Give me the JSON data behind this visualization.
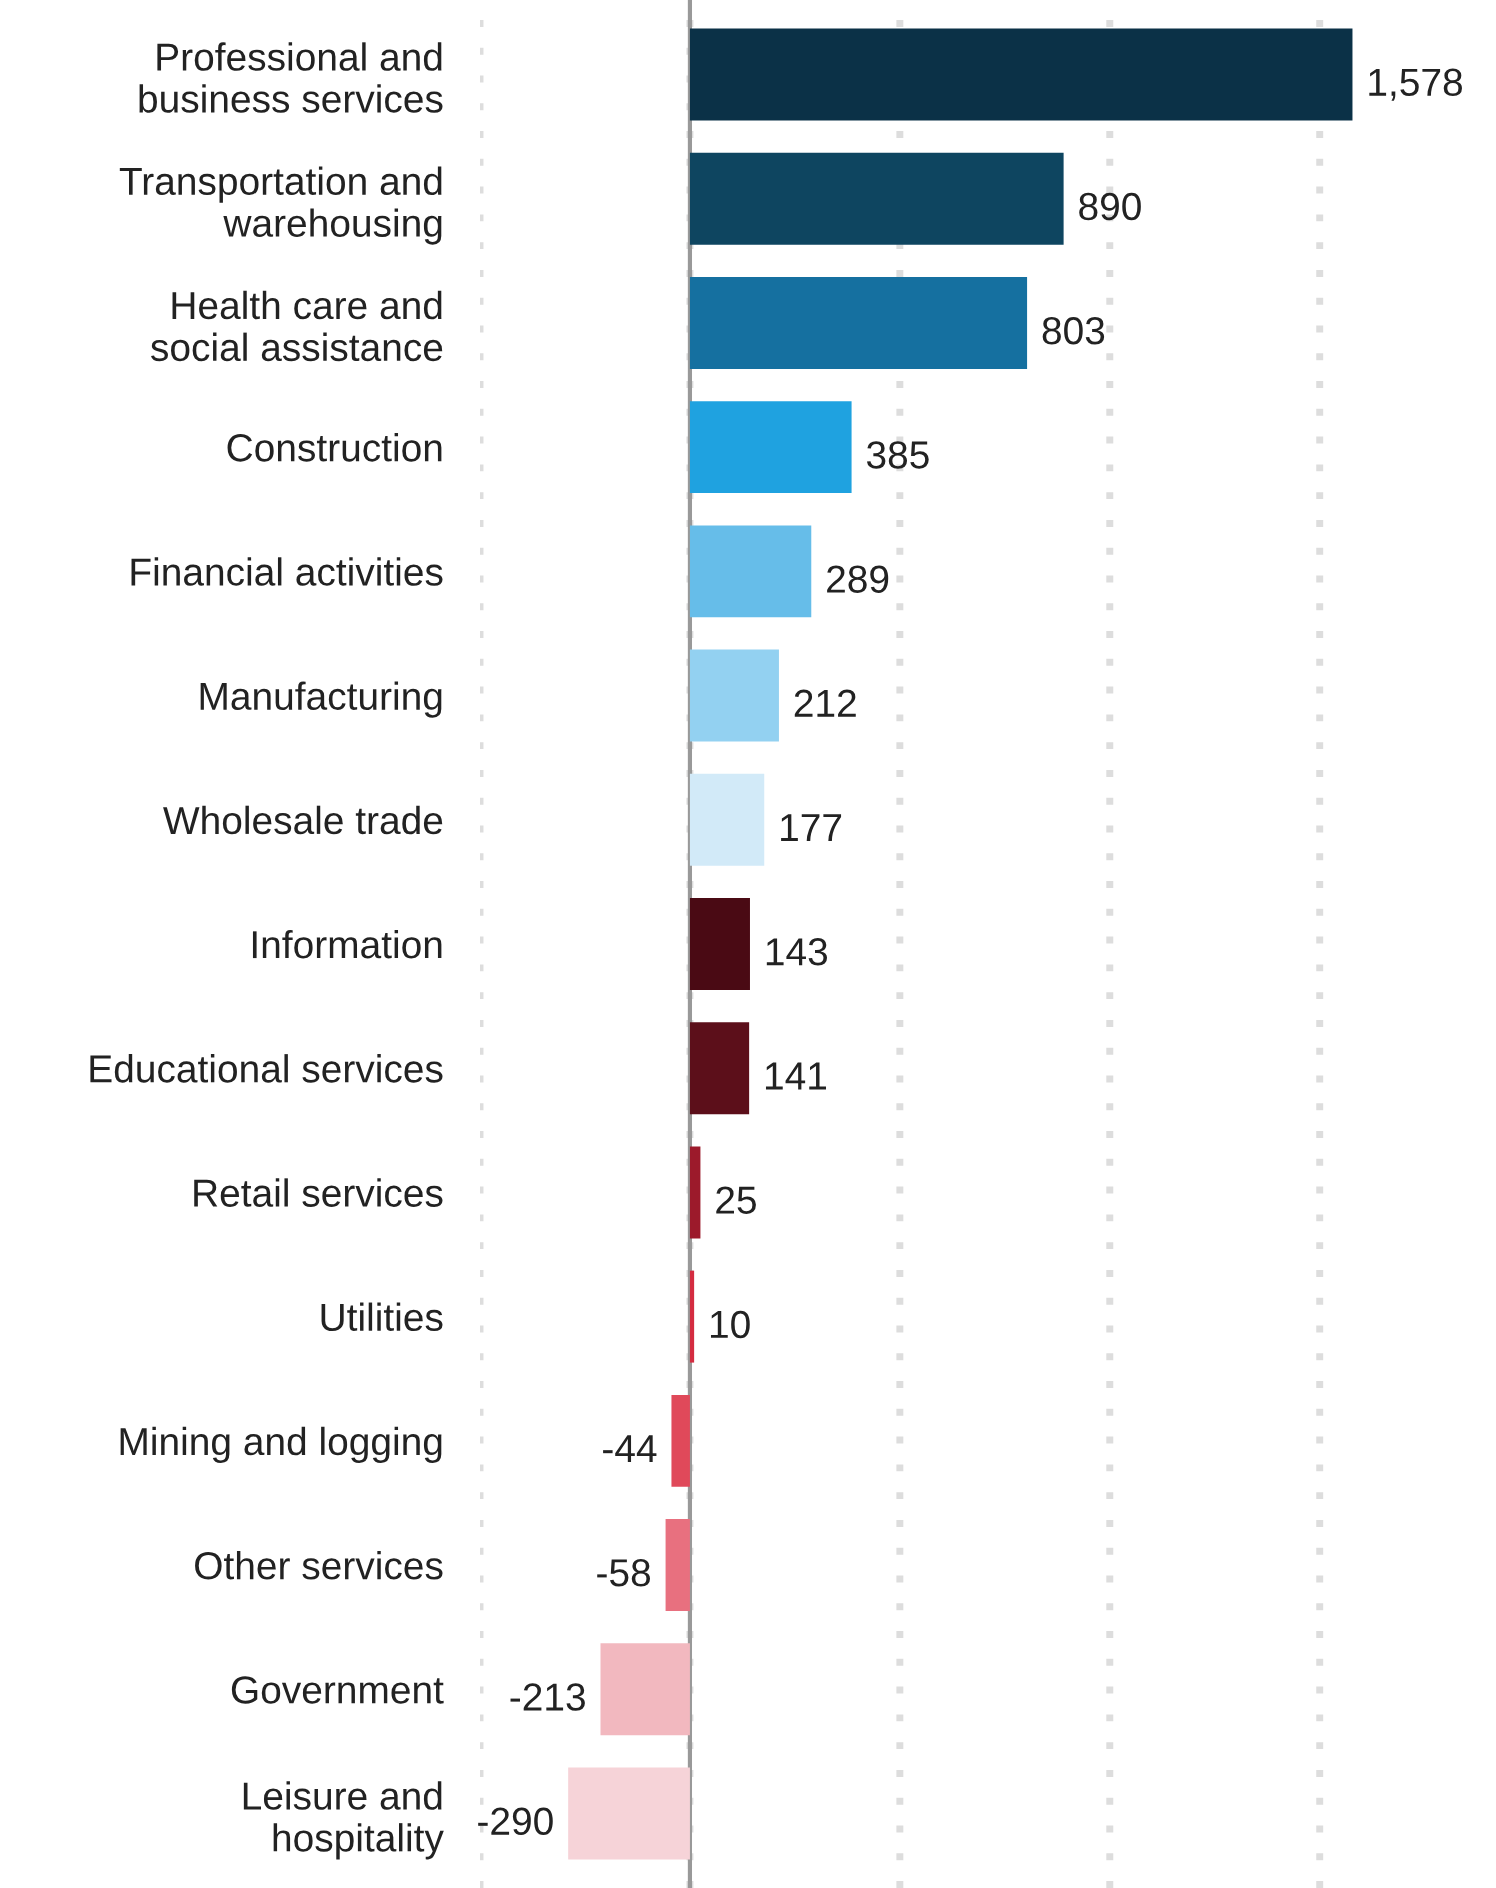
{
  "chart_data": {
    "type": "bar",
    "orientation": "horizontal",
    "categories": [
      "Professional and\nbusiness services",
      "Transportation and\nwarehousing",
      "Health care and\nsocial assistance",
      "Construction",
      "Financial activities",
      "Manufacturing",
      "Wholesale trade",
      "Information",
      "Educational services",
      "Retail services",
      "Utilities",
      "Mining and logging",
      "Other services",
      "Government",
      "Leisure and\nhospitality"
    ],
    "values": [
      1578,
      890,
      803,
      385,
      289,
      212,
      177,
      143,
      141,
      25,
      10,
      -44,
      -58,
      -213,
      -290
    ],
    "colors": [
      "#0b3147",
      "#0e4560",
      "#1570a0",
      "#1fa2e0",
      "#66bde9",
      "#93d1f1",
      "#d2eaf8",
      "#4a0a14",
      "#5c0f1a",
      "#9c1a2b",
      "#d42c40",
      "#e0495a",
      "#e8707f",
      "#f2b8bf",
      "#f6d3d8"
    ],
    "value_labels": [
      "1,578",
      "890",
      "803",
      "385",
      "289",
      "212",
      "177",
      "143",
      "141",
      "25",
      "10",
      "-44",
      "-58",
      "-213",
      "-290"
    ],
    "xticks": [
      {
        "value": -500,
        "label": null
      },
      {
        "value": 0,
        "label": null
      },
      {
        "value": 500,
        "label": null
      },
      {
        "value": 1000,
        "label": null
      },
      {
        "value": 1500,
        "label": null
      }
    ],
    "ref_lines": [
      {
        "axis": "x",
        "value": 0,
        "label": null,
        "color": "#999999",
        "line_style": "solid"
      }
    ],
    "grid": "x",
    "tick_labels": "y",
    "legend": false
  }
}
